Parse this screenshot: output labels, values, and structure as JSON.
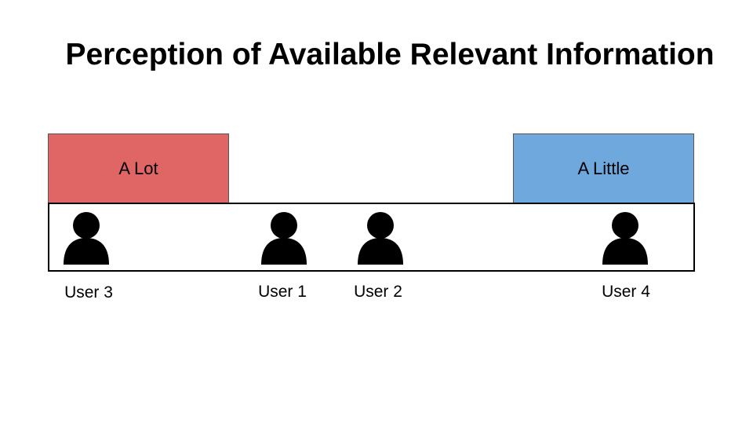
{
  "title": "Perception of Available Relevant Information",
  "scale": {
    "left": {
      "label": "A Lot",
      "color": "#e06666"
    },
    "right": {
      "label": "A Little",
      "color": "#6fa8dc"
    }
  },
  "users": [
    {
      "label": "User 3",
      "icon": "person-icon"
    },
    {
      "label": "User 1",
      "icon": "person-icon"
    },
    {
      "label": "User 2",
      "icon": "person-icon"
    },
    {
      "label": "User 4",
      "icon": "person-icon"
    }
  ]
}
